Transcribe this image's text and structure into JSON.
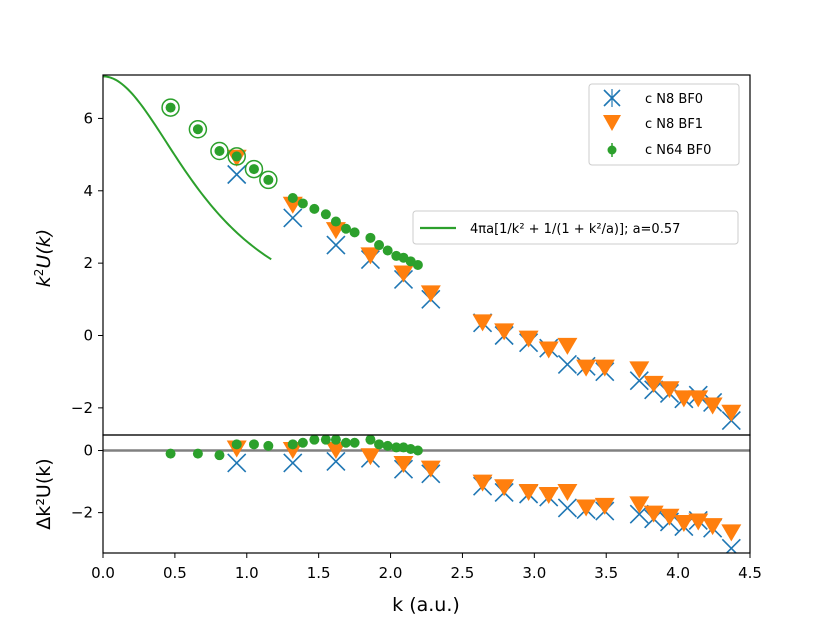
{
  "chart_data": {
    "type": "scatter",
    "xlabel": "k (a.u.)",
    "xlim": [
      0.0,
      4.5
    ],
    "x_ticks": [
      "0.0",
      "0.5",
      "1.0",
      "1.5",
      "2.0",
      "2.5",
      "3.0",
      "3.5",
      "4.0",
      "4.5"
    ],
    "x_tick_values": [
      0,
      0.5,
      1,
      1.5,
      2,
      2.5,
      3,
      3.5,
      4,
      4.5
    ],
    "panels": [
      {
        "id": "top",
        "ylabel_base": "k",
        "ylabel_sup": "2",
        "ylabel_rest": "U(k)",
        "ylim": [
          -2.75,
          7.2
        ],
        "y_ticks": [
          "−2",
          "0",
          "2",
          "4",
          "6"
        ],
        "y_tick_values": [
          -2,
          0,
          2,
          4,
          6
        ],
        "series": [
          {
            "name": "c N8 BF0",
            "marker": "x",
            "color": "#1f77b4",
            "x": [
              0.93,
              1.32,
              1.62,
              1.86,
              2.09,
              2.28,
              2.64,
              2.79,
              2.96,
              3.1,
              3.23,
              3.36,
              3.49,
              3.73,
              3.83,
              3.94,
              4.04,
              4.14,
              4.24,
              4.37
            ],
            "y": [
              4.45,
              3.25,
              2.5,
              2.1,
              1.55,
              1.0,
              0.35,
              0.0,
              -0.2,
              -0.35,
              -0.8,
              -0.85,
              -1.0,
              -1.25,
              -1.5,
              -1.6,
              -1.75,
              -1.65,
              -1.85,
              -2.35
            ]
          },
          {
            "name": "c N8 BF1",
            "marker": "v",
            "color": "#ff7f0e",
            "x": [
              0.93,
              1.32,
              1.62,
              1.86,
              2.09,
              2.28,
              2.64,
              2.79,
              2.96,
              3.1,
              3.23,
              3.36,
              3.49,
              3.73,
              3.83,
              3.94,
              4.04,
              4.14,
              4.24,
              4.37
            ],
            "y": [
              4.9,
              3.6,
              2.9,
              2.2,
              1.7,
              1.15,
              0.35,
              0.1,
              -0.1,
              -0.4,
              -0.3,
              -0.9,
              -0.9,
              -0.95,
              -1.35,
              -1.5,
              -1.75,
              -1.75,
              -1.95,
              -2.15
            ]
          },
          {
            "name": "c N64 BF0",
            "marker": "o",
            "color": "#2ca02c",
            "x": [
              0.47,
              0.66,
              0.81,
              0.93,
              1.05,
              1.15,
              1.32,
              1.39,
              1.47,
              1.55,
              1.62,
              1.69,
              1.75,
              1.86,
              1.92,
              1.98,
              2.04,
              2.09,
              2.14,
              2.19
            ],
            "y": [
              6.3,
              5.7,
              5.1,
              4.95,
              4.6,
              4.3,
              3.8,
              3.65,
              3.5,
              3.35,
              3.15,
              2.95,
              2.85,
              2.7,
              2.5,
              2.35,
              2.2,
              2.15,
              2.05,
              1.95
            ]
          }
        ],
        "open_circles_x": [
          0.47,
          0.66,
          0.81,
          0.93,
          1.05,
          1.15
        ],
        "open_circles_y": [
          6.3,
          5.7,
          5.1,
          4.95,
          4.6,
          4.3
        ],
        "fit": {
          "label": "4πa[1/k² + 1/(1 + k²/a)]; a=0.57",
          "color": "#2ca02c",
          "x_range": [
            0.0,
            1.17
          ]
        }
      },
      {
        "id": "bottom",
        "ylabel": "Δk²U(k)",
        "ylim": [
          -3.3,
          0.5
        ],
        "y_ticks": [
          "−2",
          "0"
        ],
        "y_tick_values": [
          -2,
          0
        ],
        "series": [
          {
            "name": "c N8 BF0",
            "marker": "x",
            "color": "#1f77b4",
            "x": [
              0.93,
              1.32,
              1.62,
              1.86,
              2.09,
              2.28,
              2.64,
              2.79,
              2.96,
              3.1,
              3.23,
              3.36,
              3.49,
              3.73,
              3.83,
              3.94,
              4.04,
              4.14,
              4.24,
              4.37
            ],
            "y": [
              -0.4,
              -0.4,
              -0.35,
              -0.25,
              -0.6,
              -0.75,
              -1.15,
              -1.35,
              -1.4,
              -1.5,
              -1.85,
              -1.9,
              -1.95,
              -2.05,
              -2.2,
              -2.3,
              -2.45,
              -2.25,
              -2.5,
              -3.15
            ]
          },
          {
            "name": "c N8 BF1",
            "marker": "v",
            "color": "#ff7f0e",
            "x": [
              0.93,
              1.32,
              1.62,
              1.86,
              2.09,
              2.28,
              2.64,
              2.79,
              2.96,
              3.1,
              3.23,
              3.36,
              3.49,
              3.73,
              3.83,
              3.94,
              4.04,
              4.14,
              4.24,
              4.37
            ],
            "y": [
              0.05,
              0.0,
              0.0,
              -0.2,
              -0.45,
              -0.6,
              -1.05,
              -1.2,
              -1.35,
              -1.45,
              -1.35,
              -1.85,
              -1.8,
              -1.75,
              -2.05,
              -2.15,
              -2.35,
              -2.3,
              -2.45,
              -2.65
            ]
          },
          {
            "name": "c N64 BF0",
            "marker": "o",
            "color": "#2ca02c",
            "x": [
              0.47,
              0.66,
              0.81,
              0.93,
              1.05,
              1.15,
              1.32,
              1.39,
              1.47,
              1.55,
              1.62,
              1.69,
              1.75,
              1.86,
              1.92,
              1.98,
              2.04,
              2.09,
              2.14,
              2.19
            ],
            "y": [
              -0.1,
              -0.1,
              -0.15,
              0.2,
              0.2,
              0.15,
              0.2,
              0.25,
              0.35,
              0.35,
              0.35,
              0.25,
              0.25,
              0.35,
              0.2,
              0.15,
              0.1,
              0.1,
              0.05,
              0.0
            ]
          }
        ],
        "zero_line": {
          "y": 0,
          "color": "#808080"
        }
      }
    ],
    "legend": {
      "placement": "top-right",
      "entries": [
        "c N8 BF0",
        "c N8 BF1",
        "c N64 BF0"
      ],
      "fit_placement": "center-right"
    }
  }
}
